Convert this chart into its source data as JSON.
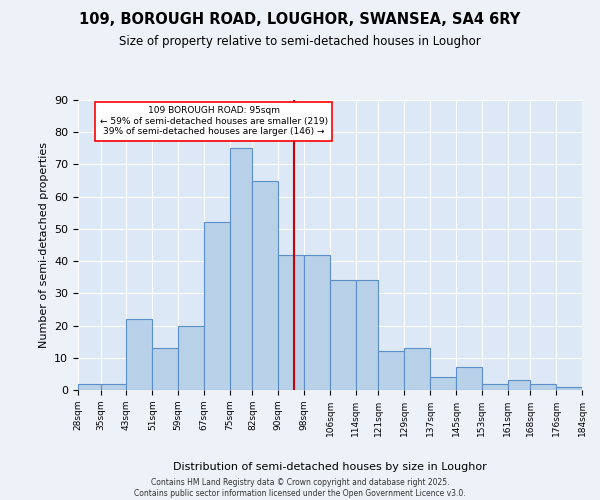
{
  "title_line1": "109, BOROUGH ROAD, LOUGHOR, SWANSEA, SA4 6RY",
  "title_line2": "Size of property relative to semi-detached houses in Loughor",
  "xlabel": "Distribution of semi-detached houses by size in Loughor",
  "ylabel": "Number of semi-detached properties",
  "annotation_line1": "109 BOROUGH ROAD: 95sqm",
  "annotation_line2": "← 59% of semi-detached houses are smaller (219)",
  "annotation_line3": "39% of semi-detached houses are larger (146) →",
  "property_size": 95,
  "bin_edges": [
    28,
    35,
    43,
    51,
    59,
    67,
    75,
    82,
    90,
    98,
    106,
    114,
    121,
    129,
    137,
    145,
    153,
    161,
    168,
    176,
    184
  ],
  "bin_labels": [
    "28sqm",
    "35sqm",
    "43sqm",
    "51sqm",
    "59sqm",
    "67sqm",
    "75sqm",
    "82sqm",
    "90sqm",
    "98sqm",
    "106sqm",
    "114sqm",
    "121sqm",
    "129sqm",
    "137sqm",
    "145sqm",
    "153sqm",
    "161sqm",
    "168sqm",
    "176sqm",
    "184sqm"
  ],
  "bar_heights": [
    2,
    2,
    22,
    13,
    20,
    52,
    75,
    65,
    42,
    42,
    34,
    34,
    12,
    13,
    4,
    7,
    2,
    3,
    2,
    1
  ],
  "bar_color": "#b8d0e8",
  "bar_edge_color": "#5b8fc9",
  "line_color": "#cc0000",
  "bg_color": "#dce8f5",
  "fig_bg_color": "#edf2f8",
  "grid_color": "#ffffff",
  "footer_text": "Contains HM Land Registry data © Crown copyright and database right 2025.\nContains public sector information licensed under the Open Government Licence v3.0.",
  "ylim": [
    0,
    90
  ],
  "yticks": [
    0,
    10,
    20,
    30,
    40,
    50,
    60,
    70,
    80,
    90
  ]
}
